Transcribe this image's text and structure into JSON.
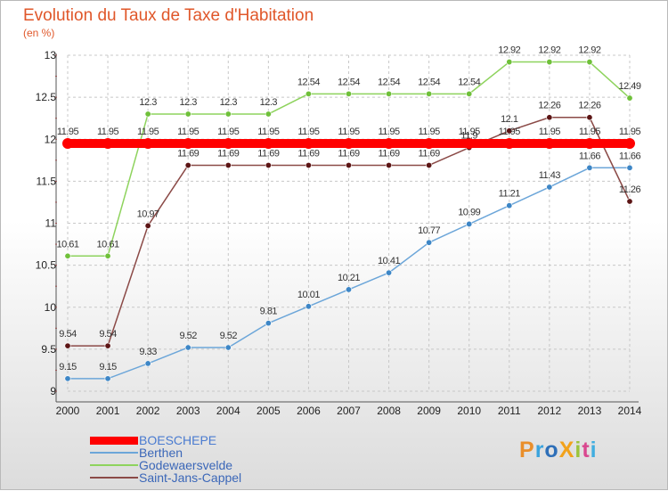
{
  "title": "Evolution du Taux de Taxe d'Habitation",
  "unit_label": "(en %)",
  "brand": {
    "text": "ProXiti",
    "colors": [
      "#e98e2a",
      "#3aa3dd",
      "#2e6fb8",
      "#f2a21b",
      "#9cc43c",
      "#d9478f",
      "#41aee0"
    ]
  },
  "chart_data": {
    "type": "line",
    "title": "Evolution du Taux de Taxe d'Habitation",
    "subtitle": "(en %)",
    "xlabel": "",
    "ylabel": "",
    "x": [
      "2000",
      "2001",
      "2002",
      "2003",
      "2004",
      "2005",
      "2006",
      "2007",
      "2008",
      "2009",
      "2010",
      "2011",
      "2012",
      "2013",
      "2014"
    ],
    "ylim": [
      9,
      13
    ],
    "yticks": [
      "9",
      "9.5",
      "10",
      "10.5",
      "11",
      "11.5",
      "12",
      "12.5",
      "13"
    ],
    "grid": true,
    "legend_position": "bottom-left",
    "series": [
      {
        "name": "BOESCHEPE",
        "color": "#ff0000",
        "values": [
          11.95,
          11.95,
          11.95,
          11.95,
          11.95,
          11.95,
          11.95,
          11.95,
          11.95,
          11.95,
          11.95,
          11.95,
          11.95,
          11.95,
          11.95
        ],
        "labels": [
          "11.95",
          "11.95",
          "11.95",
          "11.95",
          "11.95",
          "11.95",
          "11.95",
          "11.95",
          "11.95",
          "11.95",
          "11.95",
          "11.95",
          "11.95",
          "11.95",
          "11.95"
        ]
      },
      {
        "name": "Berthen",
        "color": "#6ca6d9",
        "marker": "#3d86c6",
        "values": [
          9.15,
          9.15,
          9.33,
          9.52,
          9.52,
          9.81,
          10.01,
          10.21,
          10.41,
          10.77,
          10.99,
          11.21,
          11.43,
          11.66,
          11.66
        ],
        "labels": [
          "9.15",
          "9.15",
          "9.33",
          "9.52",
          "9.52",
          "9.81",
          "10.01",
          "10.21",
          "10.41",
          "10.77",
          "10.99",
          "11.21",
          "11.43",
          "11.66",
          "11.66"
        ]
      },
      {
        "name": "Godewaersvelde",
        "color": "#8ed35d",
        "marker": "#6fc03a",
        "values": [
          10.61,
          10.61,
          12.3,
          12.3,
          12.3,
          12.3,
          12.54,
          12.54,
          12.54,
          12.54,
          12.54,
          12.92,
          12.92,
          12.92,
          12.49
        ],
        "labels": [
          "10.61",
          "10.61",
          "12.3",
          "12.3",
          "12.3",
          "12.3",
          "12.54",
          "12.54",
          "12.54",
          "12.54",
          "12.54",
          "12.92",
          "12.92",
          "12.92",
          "12.49"
        ]
      },
      {
        "name": "Saint-Jans-Cappel",
        "color": "#8b4a47",
        "marker": "#5c1515",
        "values": [
          9.54,
          9.54,
          10.97,
          11.69,
          11.69,
          11.69,
          11.69,
          11.69,
          11.69,
          11.69,
          11.9,
          12.1,
          12.26,
          12.26,
          11.26
        ],
        "labels": [
          "9.54",
          "9.54",
          "10.97",
          "11.69",
          "11.69",
          "11.69",
          "11.69",
          "11.69",
          "11.69",
          "11.69",
          "11.9",
          "12.1",
          "12.26",
          "12.26",
          "11.26"
        ]
      }
    ]
  }
}
